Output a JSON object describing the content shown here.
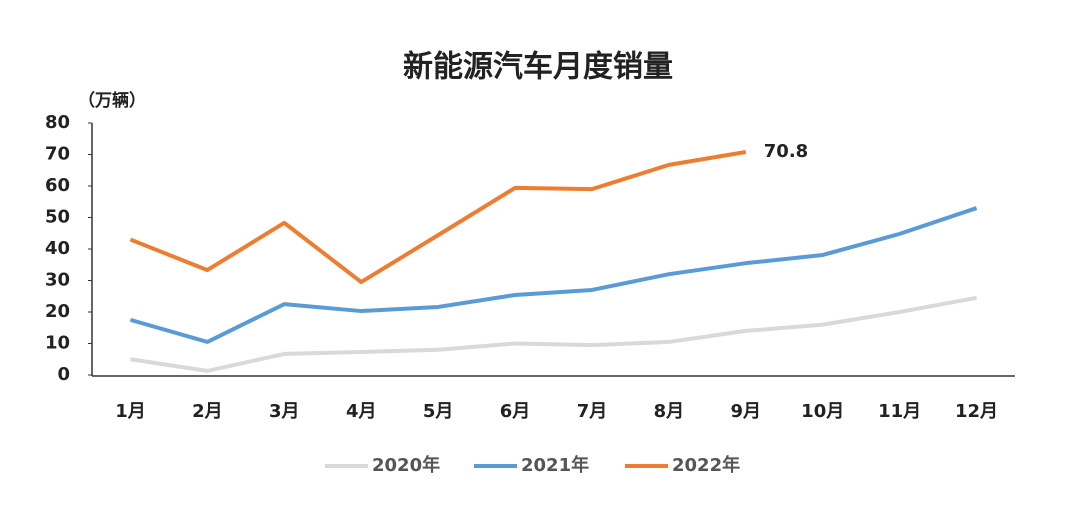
{
  "chart_data": {
    "type": "line",
    "title": "新能源汽车月度销量",
    "y_label": "（万辆）",
    "categories": [
      "1月",
      "2月",
      "3月",
      "4月",
      "5月",
      "6月",
      "7月",
      "8月",
      "9月",
      "10月",
      "11月",
      "12月"
    ],
    "series": [
      {
        "name": "2020年",
        "color": "#d9d9d9",
        "values": [
          5,
          1.3,
          6.7,
          7.3,
          8,
          10,
          9.5,
          10.5,
          14,
          16,
          20,
          24.5
        ]
      },
      {
        "name": "2021年",
        "color": "#5b9bd5",
        "values": [
          17.5,
          10.5,
          22.5,
          20.3,
          21.6,
          25.4,
          27,
          32,
          35.5,
          38.1,
          44.8,
          53
        ]
      },
      {
        "name": "2022年",
        "color": "#ed7d31",
        "values": [
          43,
          33.3,
          48.3,
          29.5,
          44.4,
          59.4,
          59,
          66.7,
          70.8,
          null,
          null,
          null
        ]
      }
    ],
    "annotations": [
      {
        "series": 2,
        "index": 8
      }
    ],
    "ylim": [
      0,
      80
    ],
    "yticks": [
      0,
      10,
      20,
      30,
      40,
      50,
      60,
      70,
      80
    ],
    "grid": false,
    "legend": "bottom"
  }
}
